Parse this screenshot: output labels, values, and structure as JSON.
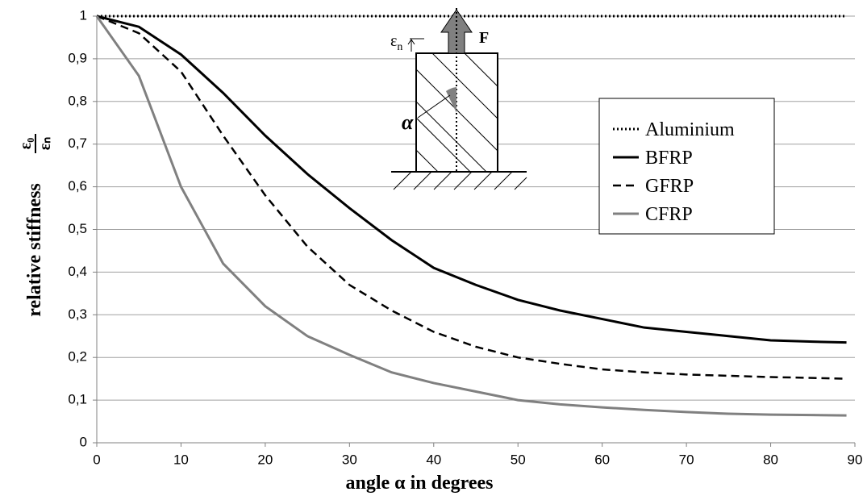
{
  "chart_data": {
    "type": "line",
    "x_label": "angle α in degrees",
    "y_label": "relative stiffness",
    "y_label_numerator": "ε₀",
    "y_label_denominator": "εₙ",
    "inset_labels": {
      "strain": "ε",
      "strain_sub": "n",
      "force": "F",
      "angle": "α"
    },
    "x": [
      0,
      5,
      10,
      15,
      20,
      25,
      30,
      35,
      40,
      45,
      50,
      55,
      60,
      65,
      70,
      75,
      80,
      85,
      89
    ],
    "series": [
      {
        "name": "Aluminium",
        "color": "#000000",
        "dash": "dotted",
        "values": [
          1,
          1,
          1,
          1,
          1,
          1,
          1,
          1,
          1,
          1,
          1,
          1,
          1,
          1,
          1,
          1,
          1,
          1,
          1
        ]
      },
      {
        "name": "BFRP",
        "color": "#000000",
        "dash": "solid",
        "values": [
          1,
          0.975,
          0.91,
          0.82,
          0.72,
          0.63,
          0.55,
          0.475,
          0.41,
          0.37,
          0.335,
          0.31,
          0.29,
          0.27,
          0.26,
          0.25,
          0.24,
          0.237,
          0.235
        ]
      },
      {
        "name": "GFRP",
        "color": "#000000",
        "dash": "dashed",
        "values": [
          1,
          0.96,
          0.87,
          0.72,
          0.58,
          0.46,
          0.37,
          0.31,
          0.26,
          0.225,
          0.2,
          0.185,
          0.172,
          0.165,
          0.16,
          0.157,
          0.154,
          0.152,
          0.15
        ]
      },
      {
        "name": "CFRP",
        "color": "#808080",
        "dash": "solid",
        "values": [
          1,
          0.86,
          0.6,
          0.42,
          0.32,
          0.25,
          0.206,
          0.165,
          0.14,
          0.12,
          0.1,
          0.09,
          0.083,
          0.077,
          0.072,
          0.068,
          0.066,
          0.065,
          0.064
        ]
      }
    ],
    "xlim": [
      0,
      90
    ],
    "xticks": [
      0,
      10,
      20,
      30,
      40,
      50,
      60,
      70,
      80,
      90
    ],
    "ylim": [
      0,
      1
    ],
    "yticks": [
      0,
      {
        "value": 0.1,
        "label": "0,1"
      },
      {
        "value": 0.2,
        "label": "0,2"
      },
      {
        "value": 0.3,
        "label": "0,3"
      },
      {
        "value": 0.4,
        "label": "0,4"
      },
      {
        "value": 0.5,
        "label": "0,5"
      },
      {
        "value": 0.6,
        "label": "0,6"
      },
      {
        "value": 0.7,
        "label": "0,7"
      },
      {
        "value": 0.8,
        "label": "0,8"
      },
      {
        "value": 0.9,
        "label": "0,9"
      },
      1
    ],
    "grid": true
  }
}
